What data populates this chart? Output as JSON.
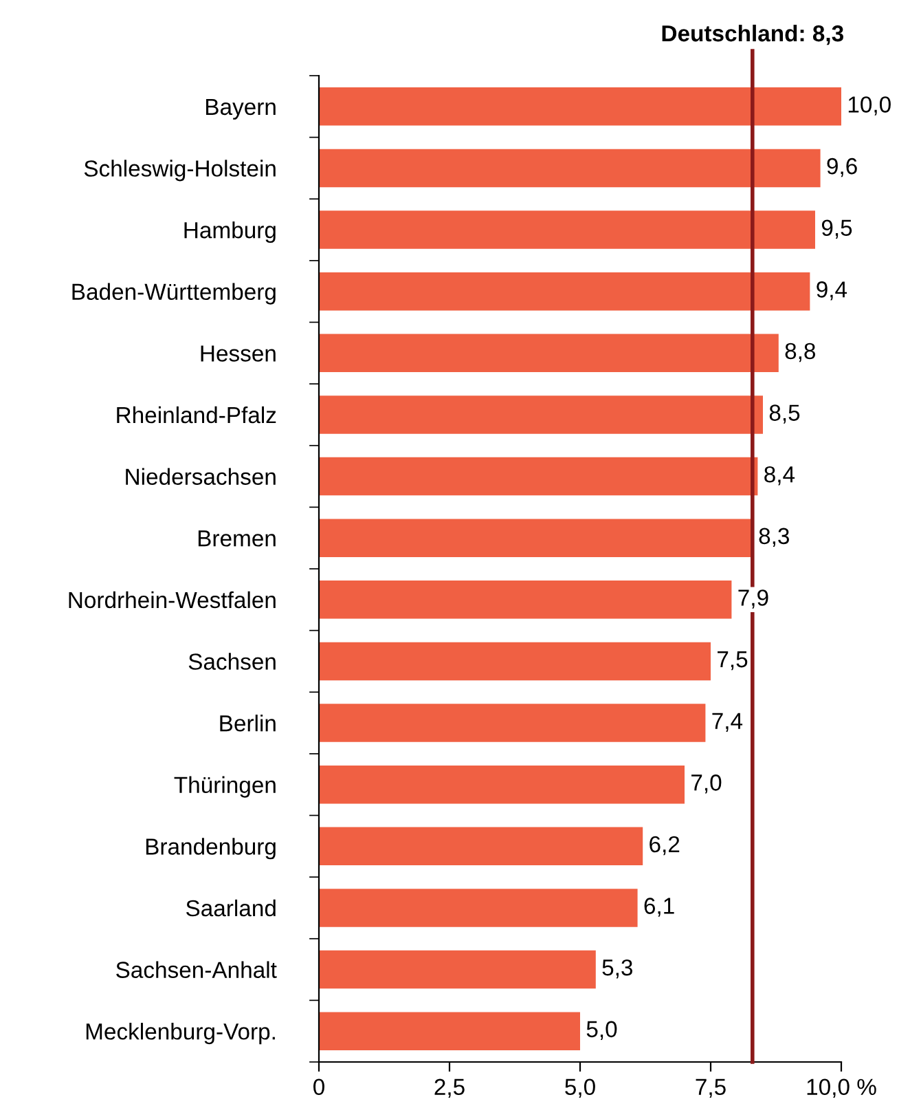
{
  "chart_data": {
    "type": "bar",
    "orientation": "horizontal",
    "categories": [
      "Bayern",
      "Schleswig-Holstein",
      "Hamburg",
      "Baden-Württemberg",
      "Hessen",
      "Rheinland-Pfalz",
      "Niedersachsen",
      "Bremen",
      "Nordrhein-Westfalen",
      "Sachsen",
      "Berlin",
      "Thüringen",
      "Brandenburg",
      "Saarland",
      "Sachsen-Anhalt",
      "Mecklenburg-Vorp."
    ],
    "values": [
      10.0,
      9.6,
      9.5,
      9.4,
      8.8,
      8.5,
      8.4,
      8.3,
      7.9,
      7.5,
      7.4,
      7.0,
      6.2,
      6.1,
      5.3,
      5.0
    ],
    "value_labels": [
      "10,0",
      "9,6",
      "9,5",
      "9,4",
      "8,8",
      "8,5",
      "8,4",
      "8,3",
      "7,9",
      "7,5",
      "7,4",
      "7,0",
      "6,2",
      "6,1",
      "5,3",
      "5,0"
    ],
    "color": "#f06043",
    "xlim": [
      0,
      10
    ],
    "xticks": [
      0,
      {
        "value": 2.5,
        "label": "2,5"
      },
      {
        "value": 5,
        "label": "5,0"
      },
      {
        "value": 7.5,
        "label": "7,5"
      },
      {
        "value": 10,
        "label": "10,0 %"
      }
    ],
    "ref_lines": [
      {
        "axis": "x",
        "value": 8.3,
        "label": "Deutschland: 8,3",
        "color": "#8b1a1a"
      }
    ],
    "grid": false
  }
}
